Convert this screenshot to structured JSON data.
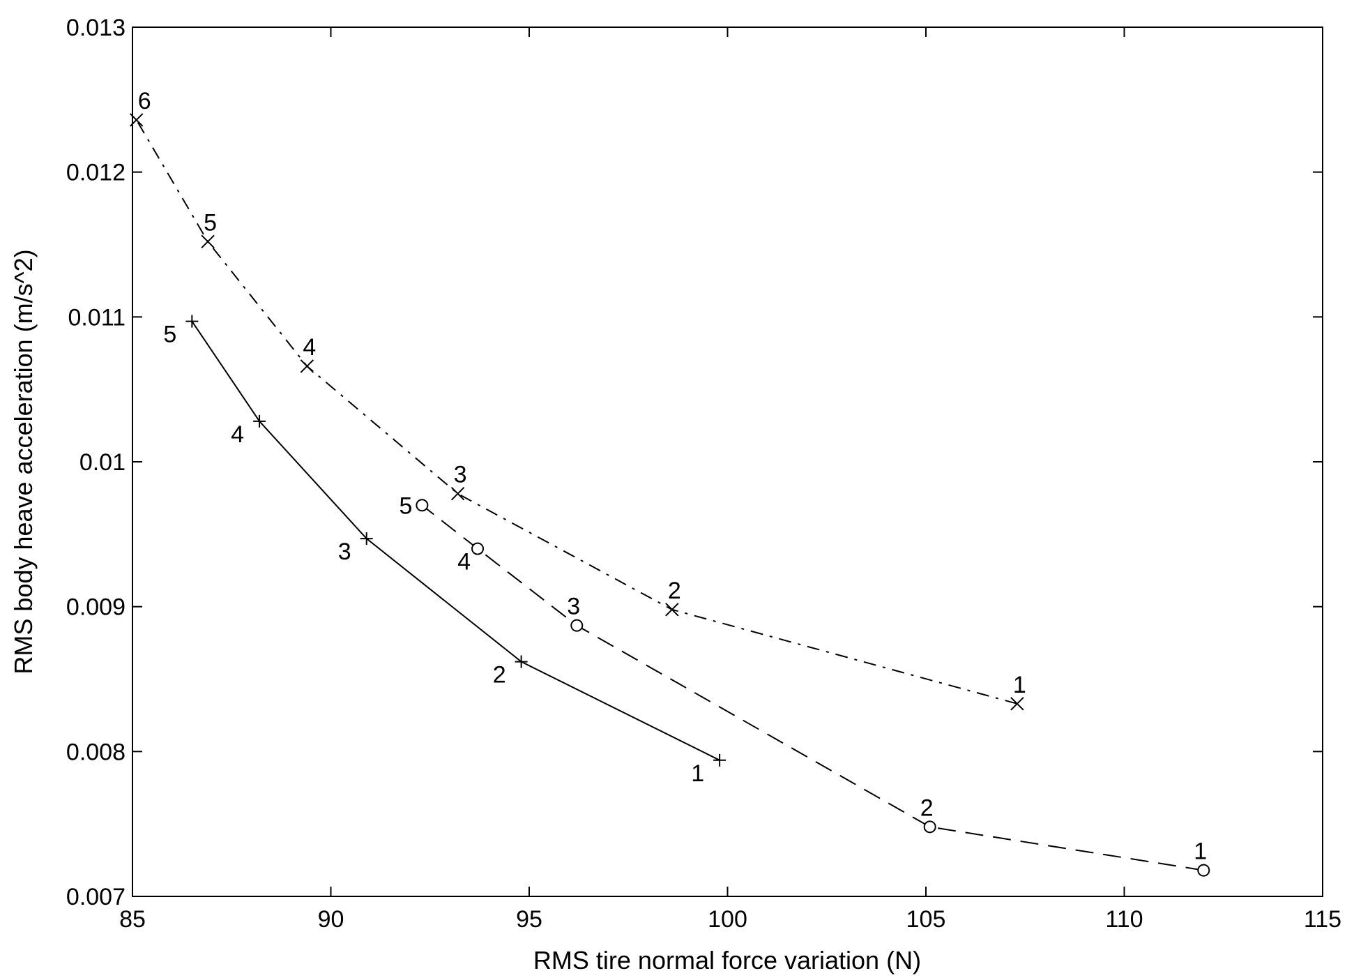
{
  "chart_data": {
    "type": "line",
    "title": "",
    "xlabel": "RMS tire normal force variation  (N)",
    "ylabel": "RMS body heave acceleration  (m/s^2)",
    "xlim": [
      85,
      115
    ],
    "ylim": [
      0.007,
      0.013
    ],
    "xticks": [
      85,
      90,
      95,
      100,
      105,
      110,
      115
    ],
    "xtick_labels": [
      "85",
      "90",
      "95",
      "100",
      "105",
      "110",
      "115"
    ],
    "yticks": [
      0.007,
      0.008,
      0.009,
      0.01,
      0.011,
      0.012,
      0.013
    ],
    "ytick_labels": [
      "0.007",
      "0.008",
      "0.009",
      "0.01",
      "0.011",
      "0.012",
      "0.013"
    ],
    "grid": false,
    "line_color": "#000000",
    "series": [
      {
        "marker": "x",
        "line_style": "dashdot",
        "points": [
          {
            "x": 107.3,
            "y": 0.00833,
            "label": "1"
          },
          {
            "x": 98.6,
            "y": 0.00898,
            "label": "2"
          },
          {
            "x": 93.2,
            "y": 0.00978,
            "label": "3"
          },
          {
            "x": 89.4,
            "y": 0.01066,
            "label": "4"
          },
          {
            "x": 86.9,
            "y": 0.01152,
            "label": "5"
          },
          {
            "x": 85.1,
            "y": 0.01236,
            "label": "6"
          }
        ]
      },
      {
        "marker": "o",
        "line_style": "dashed",
        "points": [
          {
            "x": 112.0,
            "y": 0.00718,
            "label": "1"
          },
          {
            "x": 105.1,
            "y": 0.00748,
            "label": "2"
          },
          {
            "x": 96.2,
            "y": 0.00887,
            "label": "3"
          },
          {
            "x": 93.7,
            "y": 0.0094,
            "label": "4"
          },
          {
            "x": 92.3,
            "y": 0.0097,
            "label": "5"
          }
        ]
      },
      {
        "marker": "+",
        "line_style": "solid",
        "points": [
          {
            "x": 99.8,
            "y": 0.00794,
            "label": "1"
          },
          {
            "x": 94.8,
            "y": 0.00862,
            "label": "2"
          },
          {
            "x": 90.9,
            "y": 0.00947,
            "label": "3"
          },
          {
            "x": 88.2,
            "y": 0.01028,
            "label": "4"
          },
          {
            "x": 86.5,
            "y": 0.01097,
            "label": "5"
          }
        ]
      }
    ]
  }
}
